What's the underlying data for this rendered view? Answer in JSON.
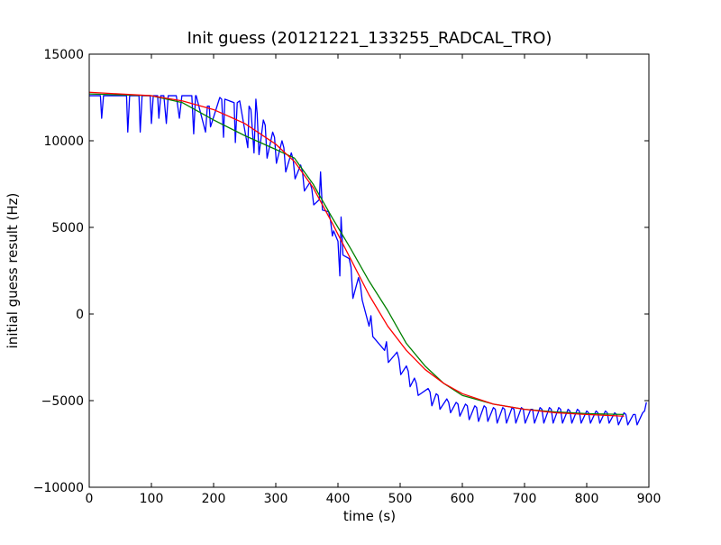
{
  "chart_data": {
    "type": "line",
    "title": "Init guess (20121221_133255_RADCAL_TRO)",
    "xlabel": "time (s)",
    "ylabel": "initial guess result (Hz)",
    "xlim": [
      0,
      900
    ],
    "ylim": [
      -10000,
      15000
    ],
    "x_ticks": [
      0,
      100,
      200,
      300,
      400,
      500,
      600,
      700,
      800,
      900
    ],
    "y_ticks": [
      -10000,
      -5000,
      0,
      5000,
      10000,
      15000
    ],
    "x_tick_labels": [
      "0",
      "100",
      "200",
      "300",
      "400",
      "500",
      "600",
      "700",
      "800",
      "900"
    ],
    "y_tick_labels": [
      "−10000",
      "−5000",
      "0",
      "5000",
      "10000",
      "15000"
    ],
    "grid": false,
    "legend": "none",
    "series": [
      {
        "color": "#0000ff",
        "x": [
          0,
          18,
          20,
          23,
          60,
          62,
          65,
          80,
          82,
          85,
          98,
          100,
          103,
          110,
          112,
          115,
          120,
          124,
          127,
          140,
          145,
          149,
          150,
          165,
          168,
          171,
          172,
          187,
          190,
          193,
          195,
          210,
          213,
          216,
          218,
          233,
          235,
          238,
          242,
          255,
          257,
          260,
          265,
          268,
          270,
          273,
          280,
          283,
          286,
          295,
          298,
          301,
          310,
          313,
          316,
          325,
          328,
          331,
          340,
          343,
          346,
          355,
          358,
          361,
          370,
          372,
          375,
          385,
          388,
          391,
          393,
          400,
          403,
          405,
          408,
          418,
          421,
          424,
          433,
          436,
          439,
          450,
          453,
          456,
          475,
          478,
          481,
          495,
          498,
          501,
          510,
          513,
          516,
          523,
          526,
          529,
          545,
          548,
          551,
          558,
          561,
          564,
          575,
          578,
          581,
          590,
          593,
          596,
          605,
          608,
          611,
          620,
          623,
          626,
          635,
          638,
          641,
          650,
          653,
          656,
          665,
          668,
          671,
          680,
          683,
          686,
          695,
          698,
          701,
          710,
          713,
          716,
          725,
          728,
          731,
          740,
          743,
          746,
          755,
          758,
          761,
          770,
          773,
          776,
          785,
          788,
          791,
          800,
          803,
          806,
          815,
          818,
          821,
          830,
          833,
          836,
          845,
          848,
          851,
          860,
          863,
          866,
          875,
          878,
          881,
          890,
          893,
          896
        ],
        "y": [
          12600,
          12600,
          11300,
          12600,
          12600,
          10500,
          12600,
          12600,
          10500,
          12600,
          12600,
          11000,
          12600,
          12600,
          11300,
          12600,
          12600,
          11000,
          12600,
          12600,
          11300,
          12600,
          12600,
          12600,
          10400,
          12600,
          12600,
          10500,
          12000,
          12000,
          10800,
          12500,
          12400,
          10200,
          12400,
          12200,
          9900,
          12200,
          12300,
          9600,
          12000,
          11800,
          9300,
          12400,
          11600,
          9200,
          11200,
          10900,
          9000,
          10500,
          10200,
          8700,
          10000,
          9600,
          8200,
          9300,
          8900,
          7800,
          8600,
          8200,
          7100,
          7600,
          7200,
          6300,
          6600,
          8200,
          6000,
          5900,
          5400,
          4500,
          4800,
          4200,
          2200,
          5600,
          3400,
          3200,
          2700,
          900,
          2100,
          1700,
          800,
          -700,
          -100,
          -1300,
          -2100,
          -1600,
          -2800,
          -2200,
          -2600,
          -3500,
          -3000,
          -3300,
          -4200,
          -3700,
          -4000,
          -4700,
          -4300,
          -4500,
          -5300,
          -4600,
          -4700,
          -5500,
          -4900,
          -5100,
          -5700,
          -5100,
          -5200,
          -5900,
          -5200,
          -5300,
          -6100,
          -5300,
          -5400,
          -6200,
          -5300,
          -5400,
          -6200,
          -5400,
          -5500,
          -6300,
          -5400,
          -5500,
          -6300,
          -5400,
          -5500,
          -6300,
          -5400,
          -5500,
          -6300,
          -5500,
          -5500,
          -6300,
          -5400,
          -5500,
          -6300,
          -5400,
          -5500,
          -6300,
          -5400,
          -5500,
          -6300,
          -5500,
          -5600,
          -6300,
          -5500,
          -5600,
          -6300,
          -5600,
          -5700,
          -6300,
          -5600,
          -5700,
          -6300,
          -5600,
          -5700,
          -6300,
          -5700,
          -5800,
          -6400,
          -5700,
          -5800,
          -6400,
          -5800,
          -5800,
          -6400,
          -5700,
          -5600,
          -5100
        ]
      },
      {
        "color": "#008000",
        "x": [
          0,
          50,
          100,
          150,
          200,
          250,
          300,
          330,
          360,
          390,
          420,
          450,
          480,
          510,
          540,
          570,
          600,
          650,
          700,
          750,
          800,
          860
        ],
        "y": [
          12700,
          12650,
          12600,
          12200,
          11200,
          10300,
          9500,
          9000,
          7500,
          5600,
          3800,
          1900,
          200,
          -1700,
          -3000,
          -4000,
          -4700,
          -5200,
          -5500,
          -5650,
          -5750,
          -5800
        ]
      },
      {
        "color": "#ff0000",
        "x": [
          0,
          50,
          100,
          150,
          200,
          250,
          300,
          330,
          360,
          390,
          420,
          450,
          480,
          510,
          540,
          570,
          600,
          650,
          700,
          750,
          800,
          860
        ],
        "y": [
          12800,
          12700,
          12600,
          12300,
          11800,
          11000,
          9800,
          8800,
          7300,
          5300,
          3200,
          1100,
          -700,
          -2100,
          -3200,
          -4000,
          -4600,
          -5200,
          -5500,
          -5700,
          -5800,
          -5900
        ]
      }
    ]
  }
}
